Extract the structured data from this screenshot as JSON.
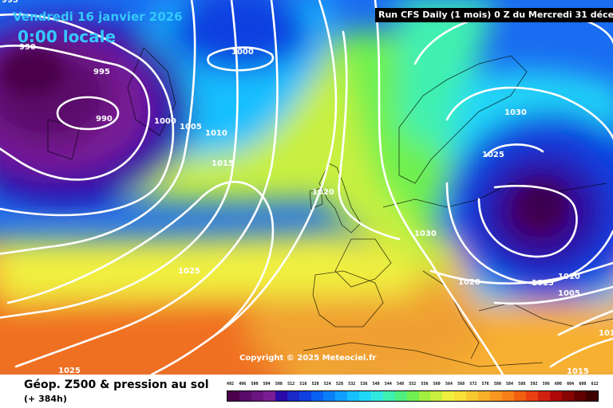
{
  "header": {
    "date": "Vendredi 16 janvier 2026",
    "time": "0:00 locale",
    "run": "Run CFS Daily (1 mois) 0 Z du Mercredi 31 décembre 2"
  },
  "copyright": "Copyright © 2025 Meteociel.fr",
  "legend": {
    "title": "Géop. Z500 & pression au sol",
    "subtitle": "(+ 384h)",
    "ticks": [
      "492",
      "496",
      "500",
      "504",
      "508",
      "512",
      "516",
      "520",
      "524",
      "528",
      "532",
      "536",
      "540",
      "544",
      "548",
      "552",
      "556",
      "560",
      "564",
      "568",
      "572",
      "576",
      "580",
      "584",
      "588",
      "592",
      "596",
      "600",
      "604",
      "608",
      "612"
    ],
    "colors": [
      "#4a004a",
      "#5a0a6a",
      "#6a1480",
      "#7a1e96",
      "#2a0aa8",
      "#1a28c8",
      "#1040e0",
      "#0a60f0",
      "#0a80f8",
      "#10a0ff",
      "#18c0ff",
      "#20d8f8",
      "#30e8e0",
      "#40f0b0",
      "#50f080",
      "#70f050",
      "#a0f040",
      "#c8f040",
      "#f0f040",
      "#f8e038",
      "#f8c830",
      "#f8b028",
      "#f89820",
      "#f88018",
      "#f06010",
      "#e84010",
      "#d02010",
      "#b00808",
      "#880404",
      "#600000",
      "#400000"
    ]
  },
  "isobar_labels": [
    {
      "text": "995",
      "name": "isobar-995-topleft"
    },
    {
      "text": "990",
      "name": "isobar-990-west"
    },
    {
      "text": "1000",
      "name": "isobar-1000-north"
    },
    {
      "text": "995",
      "name": "isobar-995-west"
    },
    {
      "text": "990",
      "name": "isobar-990-center"
    },
    {
      "text": "1000",
      "name": "isobar-1000-mid"
    },
    {
      "text": "1005",
      "name": "isobar-1005-mid"
    },
    {
      "text": "1010",
      "name": "isobar-1010-mid"
    },
    {
      "text": "1015",
      "name": "isobar-1015-mid"
    },
    {
      "text": "1020",
      "name": "isobar-1020-uk"
    },
    {
      "text": "1025",
      "name": "isobar-1025-atlantic"
    },
    {
      "text": "1025",
      "name": "isobar-1025-south"
    },
    {
      "text": "1030",
      "name": "isobar-1030-scandinavia"
    },
    {
      "text": "1025",
      "name": "isobar-1025-scandinavia"
    },
    {
      "text": "1030",
      "name": "isobar-1030-europe"
    },
    {
      "text": "1020",
      "name": "isobar-1020-europe"
    },
    {
      "text": "1015",
      "name": "isobar-1015-east"
    },
    {
      "text": "1010",
      "name": "isobar-1010-east"
    },
    {
      "text": "1005",
      "name": "isobar-1005-east"
    },
    {
      "text": "1015",
      "name": "isobar-1015-southeast"
    },
    {
      "text": "101",
      "name": "isobar-101-edge"
    }
  ]
}
